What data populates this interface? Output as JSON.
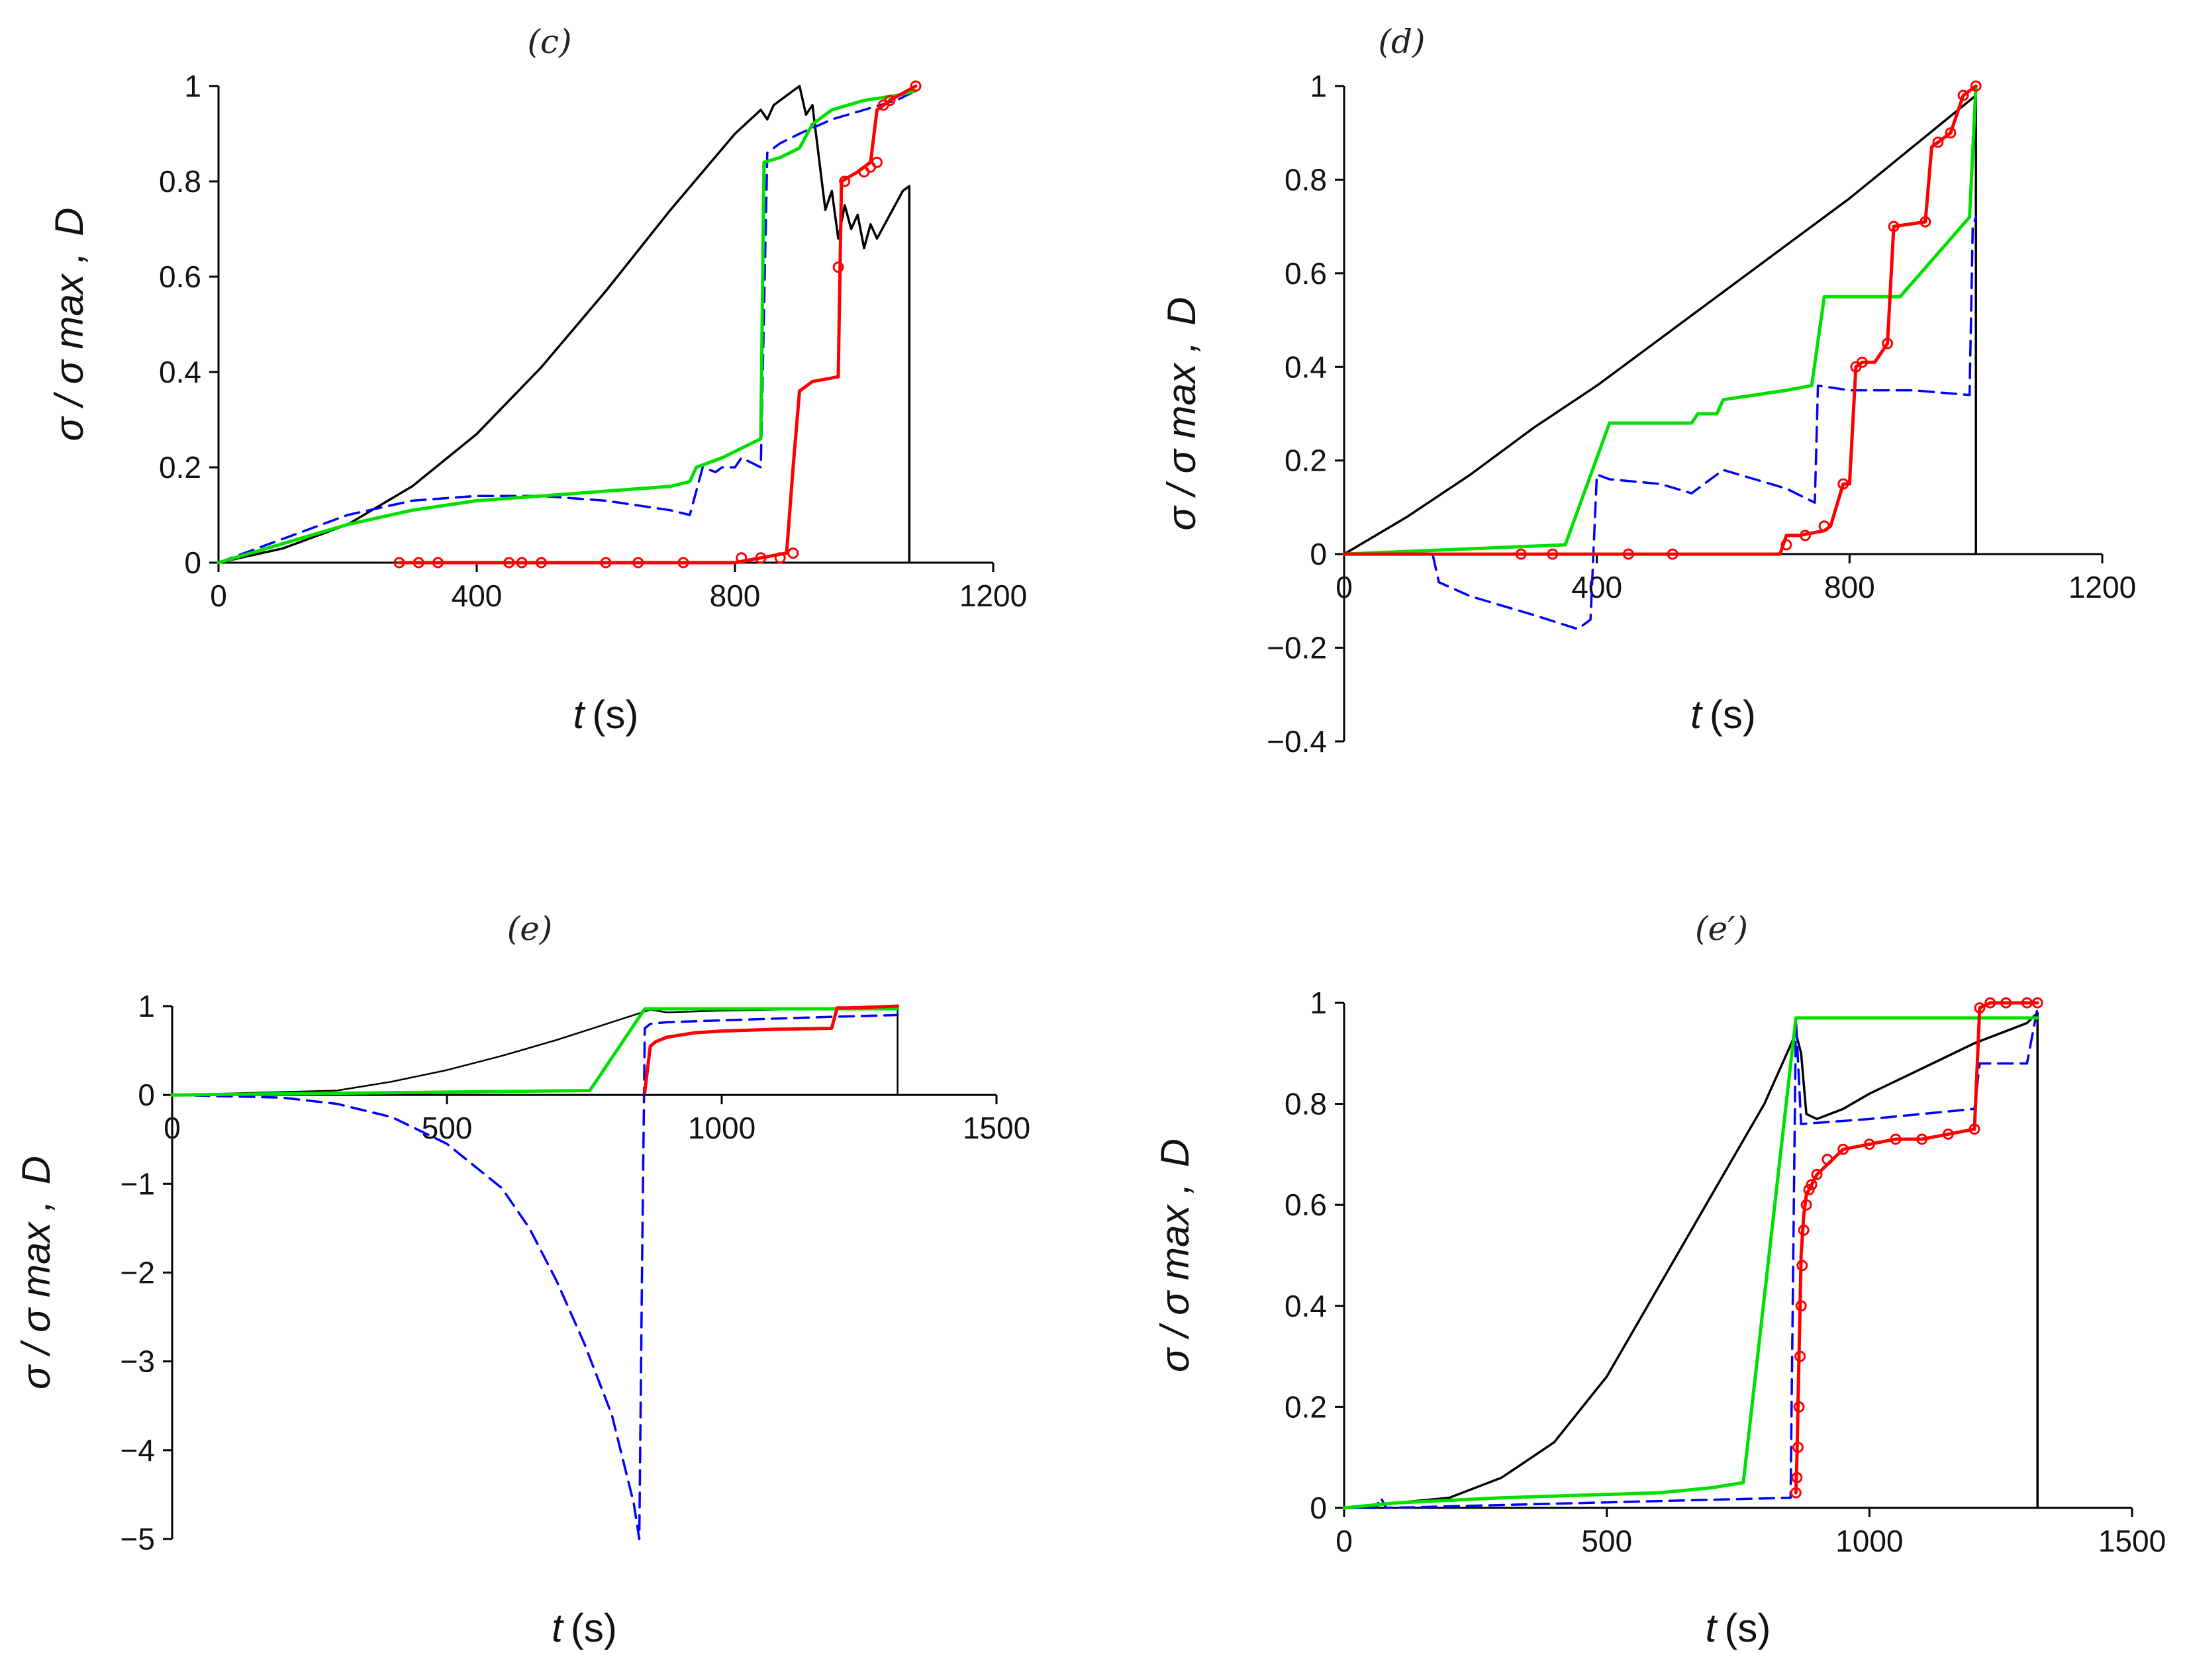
{
  "colors": {
    "black_curve": "#000000",
    "blue_dashed": "#0000FF",
    "green_curve": "#00E000",
    "red_curve": "#FF0000"
  },
  "chart_data": [
    {
      "type": "line",
      "title": "(c)",
      "xlabel_var": "t",
      "xlabel_unit": "(s)",
      "ylabel_main": "σ / σ max ,",
      "ylabel_extra": "D",
      "xlim": [
        0,
        1200
      ],
      "ylim": [
        0,
        1
      ],
      "xticks": [
        0,
        400,
        800,
        1200
      ],
      "yticks": [
        0,
        0.2,
        0.4,
        0.6,
        0.8,
        1
      ],
      "xtick_labels": [
        "0",
        "400",
        "800",
        "1200"
      ],
      "ytick_labels": [
        "0",
        "0.2",
        "0.4",
        "0.6",
        "0.8",
        "1"
      ],
      "grid": false,
      "series": [
        {
          "style": "solid",
          "color": "#000000",
          "width": 3.5,
          "x": [
            0,
            100,
            200,
            300,
            400,
            500,
            600,
            700,
            800,
            840,
            850,
            860,
            880,
            900,
            910,
            920,
            940,
            950,
            960,
            970,
            980,
            990,
            1000,
            1010,
            1020,
            1040,
            1060,
            1070,
            1070
          ],
          "y": [
            0,
            0.03,
            0.08,
            0.16,
            0.27,
            0.41,
            0.57,
            0.74,
            0.9,
            0.95,
            0.93,
            0.96,
            0.98,
            1.0,
            0.94,
            0.96,
            0.74,
            0.78,
            0.68,
            0.75,
            0.7,
            0.73,
            0.66,
            0.71,
            0.68,
            0.73,
            0.78,
            0.79,
            0
          ]
        },
        {
          "style": "dashed",
          "color": "#0000FF",
          "width": 3.5,
          "x": [
            0,
            100,
            200,
            300,
            400,
            500,
            600,
            700,
            730,
            750,
            770,
            780,
            800,
            810,
            840,
            850,
            870,
            900,
            950,
            1000,
            1050,
            1080
          ],
          "y": [
            0,
            0.05,
            0.1,
            0.13,
            0.14,
            0.14,
            0.13,
            0.11,
            0.1,
            0.2,
            0.19,
            0.2,
            0.2,
            0.22,
            0.2,
            0.86,
            0.88,
            0.9,
            0.93,
            0.95,
            0.97,
            0.99
          ]
        },
        {
          "style": "solid",
          "color": "#00E000",
          "width": 5,
          "x": [
            0,
            100,
            200,
            300,
            400,
            500,
            600,
            700,
            730,
            740,
            780,
            840,
            845,
            870,
            900,
            920,
            950,
            1000,
            1050,
            1080
          ],
          "y": [
            0,
            0.04,
            0.08,
            0.11,
            0.13,
            0.14,
            0.15,
            0.16,
            0.17,
            0.2,
            0.22,
            0.26,
            0.84,
            0.85,
            0.87,
            0.92,
            0.95,
            0.97,
            0.98,
            0.99
          ]
        },
        {
          "style": "solid",
          "color": "#FF0000",
          "width": 5,
          "marker": "circle",
          "x": [
            280,
            500,
            600,
            700,
            800,
            880,
            890,
            900,
            920,
            960,
            965,
            990,
            1000,
            1010,
            1020,
            1030,
            1040,
            1080
          ],
          "y": [
            0,
            0,
            0,
            0,
            0,
            0.02,
            0.2,
            0.36,
            0.38,
            0.39,
            0.8,
            0.82,
            0.83,
            0.84,
            0.95,
            0.96,
            0.97,
            1.0
          ],
          "marker_x": [
            280,
            310,
            340,
            450,
            470,
            500,
            600,
            650,
            720,
            810,
            840,
            870,
            890,
            960,
            970,
            1000,
            1010,
            1020,
            1030,
            1040,
            1080
          ],
          "marker_y": [
            0,
            0,
            0,
            0,
            0,
            0,
            0,
            0,
            0,
            0.01,
            0.01,
            0.01,
            0.02,
            0.62,
            0.8,
            0.82,
            0.83,
            0.84,
            0.96,
            0.97,
            1.0
          ]
        }
      ]
    },
    {
      "type": "line",
      "title": "(d)",
      "xlabel_var": "t",
      "xlabel_unit": "(s)",
      "ylabel_main": "σ / σ max ,",
      "ylabel_extra": "D",
      "xlim": [
        0,
        1200
      ],
      "ylim": [
        -0.4,
        1
      ],
      "xticks": [
        0,
        400,
        800,
        1200
      ],
      "yticks": [
        -0.4,
        -0.2,
        0,
        0.2,
        0.4,
        0.6,
        0.8,
        1
      ],
      "xtick_labels": [
        "0",
        "400",
        "800",
        "1200"
      ],
      "ytick_labels": [
        "−0.4",
        "−0.2",
        "0",
        "0.2",
        "0.4",
        "0.6",
        "0.8",
        "1"
      ],
      "grid": false,
      "series": [
        {
          "style": "solid",
          "color": "#000000",
          "width": 3.5,
          "x": [
            0,
            100,
            200,
            300,
            400,
            500,
            600,
            700,
            800,
            900,
            1000,
            1000
          ],
          "y": [
            0,
            0.08,
            0.17,
            0.27,
            0.36,
            0.46,
            0.56,
            0.66,
            0.76,
            0.87,
            0.98,
            0
          ]
        },
        {
          "style": "dashed",
          "color": "#0000FF",
          "width": 3.5,
          "x": [
            0,
            140,
            150,
            200,
            300,
            370,
            390,
            400,
            420,
            500,
            550,
            600,
            650,
            700,
            730,
            745,
            750,
            800,
            850,
            900,
            990,
            995,
            1000
          ],
          "y": [
            0,
            0,
            -0.06,
            -0.09,
            -0.13,
            -0.16,
            -0.14,
            0.17,
            0.16,
            0.15,
            0.13,
            0.18,
            0.16,
            0.14,
            0.12,
            0.11,
            0.36,
            0.35,
            0.35,
            0.35,
            0.34,
            0.7,
            0.72
          ]
        },
        {
          "style": "solid",
          "color": "#00E000",
          "width": 5,
          "x": [
            0,
            350,
            420,
            550,
            560,
            590,
            600,
            700,
            740,
            760,
            820,
            880,
            990,
            1000
          ],
          "y": [
            0,
            0.02,
            0.28,
            0.28,
            0.3,
            0.3,
            0.33,
            0.35,
            0.36,
            0.55,
            0.55,
            0.55,
            0.72,
            1.0
          ]
        },
        {
          "style": "solid",
          "color": "#FF0000",
          "width": 5,
          "marker": "circle",
          "x": [
            0,
            690,
            700,
            720,
            760,
            770,
            790,
            800,
            810,
            820,
            840,
            860,
            870,
            920,
            930,
            940,
            960,
            980,
            1000
          ],
          "y": [
            0,
            0,
            0.04,
            0.04,
            0.05,
            0.06,
            0.15,
            0.15,
            0.4,
            0.41,
            0.41,
            0.45,
            0.7,
            0.71,
            0.87,
            0.88,
            0.9,
            0.98,
            1.0
          ],
          "marker_x": [
            280,
            330,
            450,
            520,
            700,
            730,
            760,
            790,
            810,
            820,
            860,
            870,
            920,
            940,
            960,
            980,
            1000
          ],
          "marker_y": [
            0,
            0,
            0,
            0,
            0.02,
            0.04,
            0.06,
            0.15,
            0.4,
            0.41,
            0.45,
            0.7,
            0.71,
            0.88,
            0.9,
            0.98,
            1.0
          ]
        }
      ]
    },
    {
      "type": "line",
      "title": "(e)",
      "xlabel_var": "t",
      "xlabel_unit": "(s)",
      "ylabel_main": "σ / σ max ,",
      "ylabel_extra": "D",
      "xlim": [
        0,
        1500
      ],
      "ylim": [
        -5,
        1
      ],
      "xticks": [
        0,
        500,
        1000,
        1500
      ],
      "yticks": [
        -5,
        -4,
        -3,
        -2,
        -1,
        0,
        1
      ],
      "xtick_labels": [
        "0",
        "500",
        "1000",
        "1500"
      ],
      "ytick_labels": [
        "−5",
        "−4",
        "−3",
        "−2",
        "−1",
        "0",
        "1"
      ],
      "grid": false,
      "series": [
        {
          "style": "solid",
          "color": "#000000",
          "width": 2.5,
          "x": [
            0,
            300,
            400,
            500,
            600,
            700,
            800,
            870,
            900,
            1000,
            1100,
            1200,
            1320,
            1320
          ],
          "y": [
            0,
            0.05,
            0.15,
            0.28,
            0.44,
            0.62,
            0.82,
            0.96,
            0.93,
            0.95,
            0.96,
            0.97,
            0.98,
            0
          ]
        },
        {
          "style": "dashed",
          "color": "#0000FF",
          "width": 3.5,
          "x": [
            0,
            200,
            300,
            400,
            500,
            600,
            650,
            700,
            750,
            800,
            820,
            840,
            850,
            855,
            860,
            870,
            900,
            1000,
            1100,
            1200,
            1320
          ],
          "y": [
            0,
            -0.03,
            -0.1,
            -0.25,
            -0.55,
            -1.05,
            -1.5,
            -2.1,
            -2.8,
            -3.6,
            -4.1,
            -4.6,
            -5.0,
            -2.0,
            0.75,
            0.8,
            0.82,
            0.84,
            0.86,
            0.88,
            0.9
          ]
        },
        {
          "style": "solid",
          "color": "#00E000",
          "width": 5,
          "x": [
            0,
            760,
            860,
            1000,
            1200,
            1320
          ],
          "y": [
            0,
            0.05,
            0.97,
            0.97,
            0.97,
            0.97
          ]
        },
        {
          "style": "solid",
          "color": "#FF0000",
          "width": 5,
          "x": [
            860,
            870,
            880,
            900,
            950,
            1000,
            1100,
            1200,
            1210,
            1230,
            1320
          ],
          "y": [
            0.03,
            0.55,
            0.6,
            0.65,
            0.7,
            0.72,
            0.74,
            0.75,
            0.98,
            0.98,
            1.0
          ]
        }
      ]
    },
    {
      "type": "line",
      "title": "(e′)",
      "xlabel_var": "t",
      "xlabel_unit": "(s)",
      "ylabel_main": "σ / σ max ,",
      "ylabel_extra": "D",
      "xlim": [
        0,
        1500
      ],
      "ylim": [
        0,
        1
      ],
      "xticks": [
        0,
        500,
        1000,
        1500
      ],
      "yticks": [
        0,
        0.2,
        0.4,
        0.6,
        0.8,
        1
      ],
      "xtick_labels": [
        "0",
        "500",
        "1000",
        "1500"
      ],
      "ytick_labels": [
        "0",
        "0.2",
        "0.4",
        "0.6",
        "0.8",
        "1"
      ],
      "grid": false,
      "series": [
        {
          "style": "solid",
          "color": "#000000",
          "width": 3.5,
          "x": [
            0,
            200,
            300,
            400,
            500,
            600,
            700,
            800,
            860,
            870,
            880,
            900,
            950,
            1000,
            1100,
            1200,
            1300,
            1320,
            1320
          ],
          "y": [
            0,
            0.02,
            0.06,
            0.13,
            0.26,
            0.44,
            0.62,
            0.8,
            0.94,
            0.9,
            0.78,
            0.77,
            0.79,
            0.82,
            0.87,
            0.92,
            0.96,
            0.98,
            0
          ]
        },
        {
          "style": "dashed",
          "color": "#0000FF",
          "width": 3.5,
          "x": [
            0,
            60,
            70,
            80,
            850,
            860,
            870,
            1000,
            1200,
            1210,
            1300,
            1320
          ],
          "y": [
            0,
            0,
            0.02,
            0,
            0.02,
            0.97,
            0.76,
            0.77,
            0.79,
            0.88,
            0.88,
            0.99
          ]
        },
        {
          "style": "solid",
          "color": "#00E000",
          "width": 5,
          "x": [
            0,
            100,
            300,
            600,
            700,
            760,
            860,
            1000,
            1200,
            1320
          ],
          "y": [
            0,
            0.01,
            0.02,
            0.03,
            0.04,
            0.05,
            0.97,
            0.97,
            0.97,
            0.97
          ]
        },
        {
          "style": "solid",
          "color": "#FF0000",
          "width": 5,
          "marker": "circle",
          "x": [
            860,
            862,
            865,
            868,
            870,
            875,
            880,
            890,
            900,
            920,
            950,
            1000,
            1050,
            1100,
            1150,
            1200,
            1210,
            1230,
            1260,
            1300,
            1320
          ],
          "y": [
            0.03,
            0.1,
            0.25,
            0.4,
            0.5,
            0.58,
            0.62,
            0.64,
            0.66,
            0.68,
            0.71,
            0.72,
            0.73,
            0.73,
            0.74,
            0.75,
            0.99,
            1.0,
            1.0,
            1.0,
            1.0
          ],
          "marker_x": [
            860,
            862,
            864,
            866,
            868,
            870,
            872,
            875,
            880,
            885,
            890,
            900,
            920,
            950,
            1000,
            1050,
            1100,
            1150,
            1200,
            1210,
            1230,
            1260,
            1300,
            1320
          ],
          "marker_y": [
            0.03,
            0.06,
            0.12,
            0.2,
            0.3,
            0.4,
            0.48,
            0.55,
            0.6,
            0.63,
            0.64,
            0.66,
            0.69,
            0.71,
            0.72,
            0.73,
            0.73,
            0.74,
            0.75,
            0.99,
            1.0,
            1.0,
            1.0,
            1.0
          ]
        }
      ]
    }
  ]
}
